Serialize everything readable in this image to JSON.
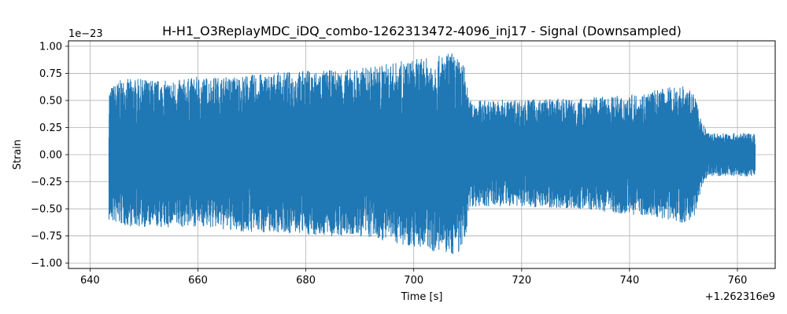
{
  "chart_data": {
    "type": "line",
    "title": "H-H1_O3ReplayMDC_iDQ_combo-1262313472-4096_inj17 - Signal (Downsampled)",
    "xlabel": "Time [s]",
    "ylabel": "Strain",
    "x_offset_label": "+1.262316e9",
    "y_scale_label": "1e−23",
    "x_offset": 1262316000,
    "y_scale": 1e-23,
    "xlim": [
      636.0,
      767.0
    ],
    "ylim": [
      -1.05,
      1.05
    ],
    "xticks": [
      640,
      660,
      680,
      700,
      720,
      740,
      760
    ],
    "xtick_labels": [
      "640",
      "660",
      "680",
      "700",
      "720",
      "740",
      "760"
    ],
    "yticks": [
      -1.0,
      -0.75,
      -0.5,
      -0.25,
      0.0,
      0.25,
      0.5,
      0.75,
      1.0
    ],
    "ytick_labels": [
      "−1.00",
      "−0.75",
      "−0.50",
      "−0.25",
      "0.00",
      "0.25",
      "0.50",
      "0.75",
      "1.00"
    ],
    "grid": true,
    "series_color": "#1f77b4",
    "series": [
      {
        "x_range": [
          643.5,
          763.3
        ],
        "envelope": [
          {
            "x": 643.5,
            "upper": 0.62,
            "lower": -0.62
          },
          {
            "x": 646.0,
            "upper": 0.7,
            "lower": -0.66
          },
          {
            "x": 650.0,
            "upper": 0.7,
            "lower": -0.67
          },
          {
            "x": 655.0,
            "upper": 0.68,
            "lower": -0.68
          },
          {
            "x": 660.0,
            "upper": 0.72,
            "lower": -0.66
          },
          {
            "x": 665.0,
            "upper": 0.72,
            "lower": -0.7
          },
          {
            "x": 670.0,
            "upper": 0.74,
            "lower": -0.72
          },
          {
            "x": 675.0,
            "upper": 0.76,
            "lower": -0.72
          },
          {
            "x": 680.0,
            "upper": 0.78,
            "lower": -0.74
          },
          {
            "x": 685.0,
            "upper": 0.78,
            "lower": -0.76
          },
          {
            "x": 690.0,
            "upper": 0.8,
            "lower": -0.76
          },
          {
            "x": 695.0,
            "upper": 0.84,
            "lower": -0.8
          },
          {
            "x": 700.0,
            "upper": 0.88,
            "lower": -0.85
          },
          {
            "x": 704.0,
            "upper": 0.9,
            "lower": -0.9
          },
          {
            "x": 707.0,
            "upper": 0.95,
            "lower": -0.93
          },
          {
            "x": 709.5,
            "upper": 0.82,
            "lower": -0.88
          },
          {
            "x": 710.2,
            "upper": 0.5,
            "lower": -0.48
          },
          {
            "x": 720.0,
            "upper": 0.51,
            "lower": -0.48
          },
          {
            "x": 730.0,
            "upper": 0.52,
            "lower": -0.5
          },
          {
            "x": 740.0,
            "upper": 0.55,
            "lower": -0.55
          },
          {
            "x": 745.0,
            "upper": 0.6,
            "lower": -0.58
          },
          {
            "x": 750.0,
            "upper": 0.65,
            "lower": -0.63
          },
          {
            "x": 752.0,
            "upper": 0.55,
            "lower": -0.58
          },
          {
            "x": 753.5,
            "upper": 0.3,
            "lower": -0.28
          },
          {
            "x": 754.5,
            "upper": 0.2,
            "lower": -0.2
          },
          {
            "x": 763.3,
            "upper": 0.2,
            "lower": -0.2
          }
        ]
      }
    ]
  }
}
